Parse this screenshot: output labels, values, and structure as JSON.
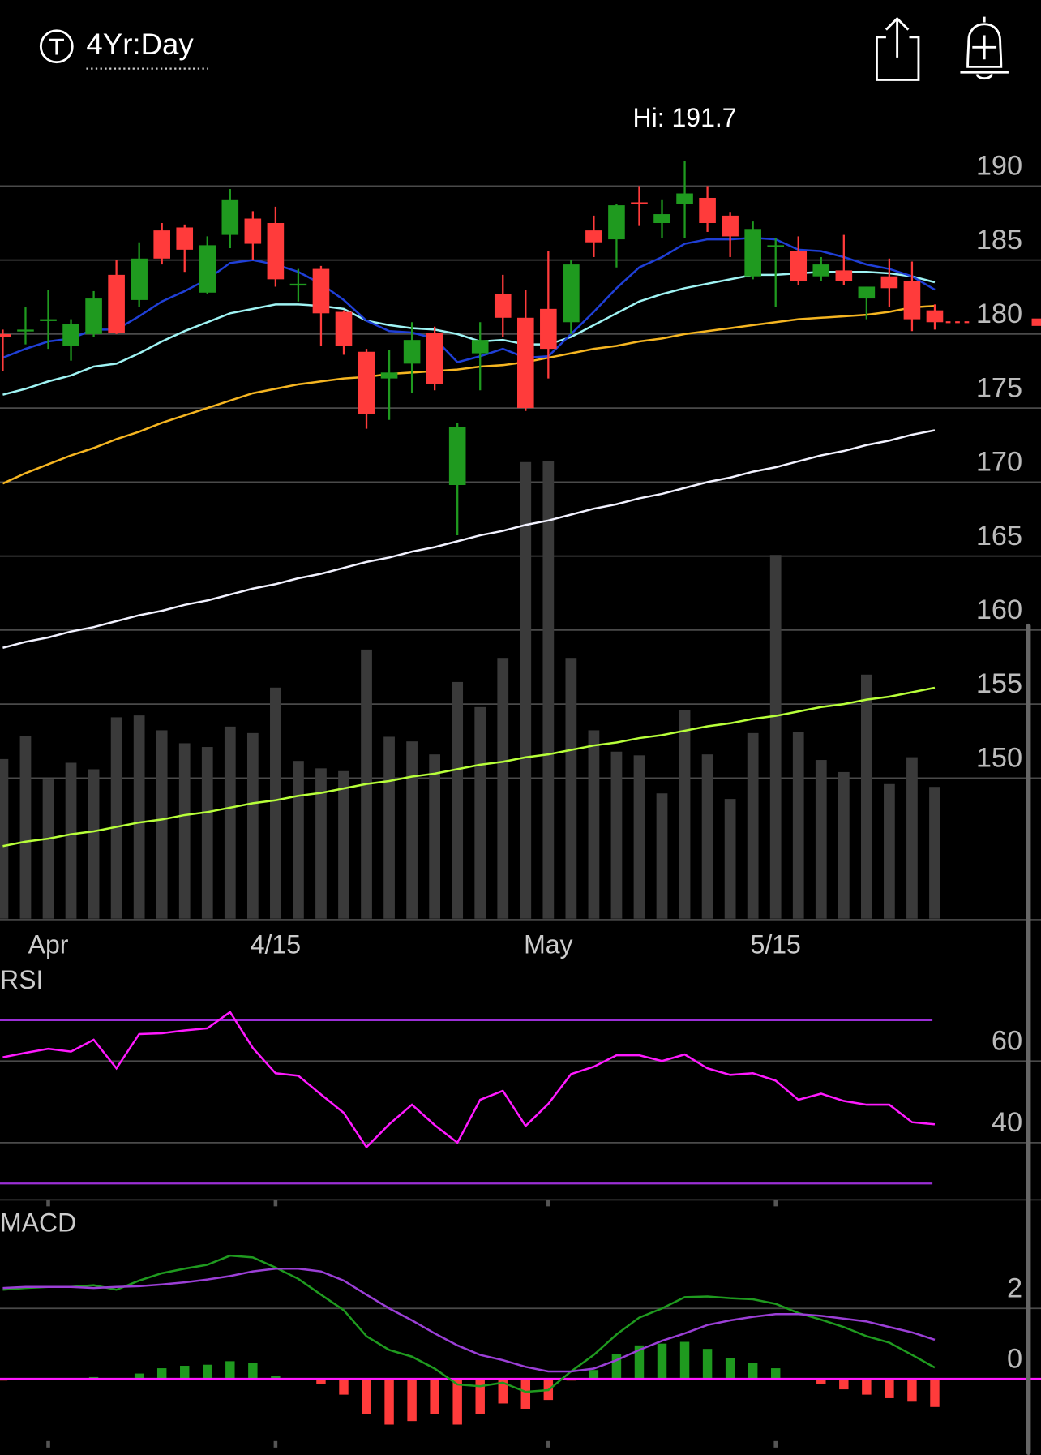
{
  "header": {
    "timeframe": "4Yr:Day"
  },
  "chart_data": [
    {
      "type": "candlestick",
      "annotation": "Hi: 191.7",
      "categories": [
        null,
        null,
        "Apr",
        null,
        null,
        null,
        null,
        null,
        null,
        null,
        null,
        null,
        "4/15",
        null,
        null,
        null,
        null,
        null,
        null,
        null,
        null,
        null,
        null,
        null,
        "May",
        null,
        null,
        null,
        null,
        null,
        null,
        null,
        null,
        null,
        "5/15",
        null,
        null,
        null,
        null,
        null,
        null,
        null
      ],
      "open": [
        180.0,
        180.2,
        180.9,
        179.2,
        180.0,
        184.0,
        182.3,
        187.0,
        187.2,
        182.8,
        186.7,
        187.8,
        187.5,
        183.3,
        184.4,
        181.5,
        178.8,
        177.0,
        178.0,
        180.1,
        169.8,
        178.7,
        182.7,
        181.1,
        181.7,
        180.8,
        187.0,
        186.4,
        188.9,
        187.5,
        188.8,
        189.2,
        188.0,
        183.9,
        185.9,
        185.6,
        183.9,
        184.3,
        182.4,
        183.9,
        183.6,
        181.6
      ],
      "high": [
        180.3,
        181.8,
        183.0,
        181.0,
        182.9,
        185.0,
        186.2,
        187.5,
        187.4,
        186.6,
        189.8,
        188.3,
        188.6,
        184.4,
        184.6,
        181.6,
        179.0,
        178.9,
        180.8,
        180.5,
        174.0,
        180.8,
        184.0,
        183.0,
        185.6,
        185.0,
        188.0,
        188.8,
        190.0,
        189.1,
        191.7,
        190.0,
        188.2,
        187.6,
        186.5,
        186.6,
        185.2,
        186.7,
        183.2,
        185.1,
        184.9,
        182.0
      ],
      "low": [
        177.5,
        179.3,
        179.0,
        178.2,
        179.8,
        180.0,
        181.8,
        184.7,
        184.2,
        182.7,
        185.8,
        185.0,
        183.2,
        182.2,
        179.2,
        178.6,
        173.6,
        174.2,
        176.0,
        176.2,
        166.4,
        176.2,
        179.8,
        174.8,
        177.0,
        180.0,
        185.2,
        184.5,
        187.3,
        186.5,
        186.5,
        186.9,
        185.2,
        183.7,
        181.8,
        183.3,
        183.6,
        183.3,
        181.0,
        181.8,
        180.2,
        180.3
      ],
      "close": [
        179.8,
        180.3,
        181.0,
        180.7,
        182.4,
        180.1,
        185.1,
        185.1,
        185.7,
        186.0,
        189.1,
        186.1,
        183.7,
        183.4,
        181.4,
        179.2,
        174.6,
        177.4,
        179.6,
        176.6,
        173.7,
        179.6,
        181.1,
        175.0,
        179.0,
        184.7,
        186.2,
        188.7,
        188.8,
        188.1,
        189.5,
        187.5,
        186.6,
        187.1,
        186.0,
        183.6,
        184.7,
        183.6,
        183.2,
        183.1,
        181.0,
        180.8
      ],
      "up_color": "#1f9a1f",
      "down_color": "#ff3b3b",
      "last_price_color": "#ff3b3b",
      "ylim": [
        140.5,
        196.3
      ],
      "yticks": [
        150,
        155,
        160,
        165,
        170,
        175,
        180,
        185,
        190
      ],
      "grid": true,
      "series": [
        {
          "color": "#b8ff3a",
          "values": [
            145.4,
            145.7,
            145.9,
            146.2,
            146.4,
            146.7,
            147.0,
            147.2,
            147.5,
            147.7,
            148.0,
            148.3,
            148.5,
            148.8,
            149.0,
            149.3,
            149.6,
            149.8,
            150.1,
            150.3,
            150.6,
            150.9,
            151.1,
            151.4,
            151.6,
            151.9,
            152.2,
            152.4,
            152.7,
            152.9,
            153.2,
            153.5,
            153.7,
            154.0,
            154.2,
            154.5,
            154.8,
            155.0,
            155.3,
            155.5,
            155.8,
            156.1
          ]
        },
        {
          "color": "#f2f2ff",
          "values": [
            158.8,
            159.2,
            159.5,
            159.9,
            160.2,
            160.6,
            161.0,
            161.3,
            161.7,
            162.0,
            162.4,
            162.8,
            163.1,
            163.5,
            163.8,
            164.2,
            164.6,
            164.9,
            165.3,
            165.6,
            166.0,
            166.4,
            166.7,
            167.1,
            167.4,
            167.8,
            168.2,
            168.5,
            168.9,
            169.2,
            169.6,
            170.0,
            170.3,
            170.7,
            171.0,
            171.4,
            171.8,
            172.1,
            172.5,
            172.8,
            173.2,
            173.5
          ]
        },
        {
          "color": "#f5b521",
          "values": [
            169.9,
            170.6,
            171.2,
            171.8,
            172.3,
            172.9,
            173.4,
            174.0,
            174.5,
            175.0,
            175.5,
            176.0,
            176.3,
            176.6,
            176.8,
            177.0,
            177.1,
            177.3,
            177.4,
            177.5,
            177.6,
            177.8,
            177.9,
            178.1,
            178.4,
            178.7,
            179.0,
            179.2,
            179.5,
            179.7,
            180.0,
            180.2,
            180.4,
            180.6,
            180.8,
            181.0,
            181.1,
            181.2,
            181.3,
            181.5,
            181.8,
            181.9
          ]
        },
        {
          "color": "#9ff3f3",
          "values": [
            175.9,
            176.3,
            176.8,
            177.2,
            177.8,
            178.0,
            178.7,
            179.5,
            180.2,
            180.8,
            181.4,
            181.7,
            182.0,
            182.0,
            181.9,
            181.7,
            180.9,
            180.6,
            180.4,
            180.3,
            180.0,
            179.5,
            179.6,
            179.3,
            179.3,
            179.8,
            180.6,
            181.4,
            182.2,
            182.7,
            183.1,
            183.4,
            183.7,
            184.0,
            184.0,
            184.1,
            184.2,
            184.2,
            184.2,
            184.1,
            183.9,
            183.5
          ]
        },
        {
          "color": "#1f3fd6",
          "values": [
            178.4,
            179.0,
            179.5,
            179.7,
            180.3,
            180.3,
            181.2,
            182.2,
            182.9,
            183.7,
            184.8,
            185.0,
            184.7,
            184.2,
            183.4,
            182.3,
            180.9,
            180.2,
            180.1,
            179.7,
            178.1,
            178.5,
            179.0,
            178.4,
            178.5,
            180.0,
            181.5,
            183.1,
            184.5,
            185.2,
            186.1,
            186.4,
            186.4,
            186.5,
            186.4,
            185.7,
            185.6,
            185.2,
            184.7,
            184.4,
            183.9,
            183.0
          ]
        }
      ],
      "volume": {
        "color": "#3a3a3a",
        "ylim": [
          0,
          890
        ],
        "values": [
          172,
          197,
          150,
          168,
          161,
          217,
          219,
          203,
          189,
          185,
          207,
          200,
          249,
          170,
          162,
          159,
          290,
          196,
          191,
          177,
          255,
          228,
          281,
          492,
          493,
          281,
          203,
          180,
          176,
          135,
          225,
          177,
          129,
          200,
          392,
          201,
          171,
          158,
          263,
          145,
          174,
          142
        ]
      }
    },
    {
      "type": "line",
      "title": "RSI",
      "ylim": [
        26,
        83.5
      ],
      "yticks": [
        40,
        60
      ],
      "grid": true,
      "levels": [
        30,
        70
      ],
      "level_color": "#9b2fd6",
      "series": [
        {
          "color": "#ff1aff",
          "values": [
            60.9,
            62.0,
            63.0,
            62.3,
            65.2,
            58.2,
            66.6,
            66.8,
            67.5,
            68.0,
            72.0,
            63.2,
            57.0,
            56.4,
            51.8,
            47.3,
            38.9,
            44.5,
            49.3,
            44.3,
            40.0,
            50.5,
            52.7,
            44.1,
            49.5,
            56.8,
            58.6,
            61.4,
            61.4,
            60.0,
            61.6,
            58.2,
            56.6,
            57.0,
            55.2,
            50.5,
            52.0,
            50.2,
            49.3,
            49.3,
            45.0,
            44.5
          ]
        }
      ]
    },
    {
      "type": "macd",
      "title": "MACD",
      "ylim": [
        -1.9,
        4.9
      ],
      "yticks": [
        0,
        2
      ],
      "grid": true,
      "zero_color": "#ff1aff",
      "series": [
        {
          "color": "#1f9a1f",
          "values": [
            2.53,
            2.58,
            2.61,
            2.61,
            2.66,
            2.53,
            2.79,
            3.0,
            3.13,
            3.24,
            3.5,
            3.45,
            3.16,
            2.84,
            2.39,
            1.95,
            1.21,
            0.82,
            0.63,
            0.29,
            -0.16,
            -0.21,
            -0.11,
            -0.37,
            -0.32,
            0.21,
            0.68,
            1.26,
            1.74,
            2.0,
            2.32,
            2.34,
            2.29,
            2.26,
            2.13,
            1.87,
            1.68,
            1.47,
            1.21,
            1.03,
            0.68,
            0.32
          ]
        },
        {
          "color": "#9b3fd6",
          "values": [
            2.58,
            2.61,
            2.61,
            2.61,
            2.58,
            2.61,
            2.63,
            2.68,
            2.74,
            2.82,
            2.92,
            3.05,
            3.13,
            3.13,
            3.05,
            2.79,
            2.39,
            2.0,
            1.66,
            1.29,
            0.95,
            0.68,
            0.53,
            0.34,
            0.21,
            0.21,
            0.29,
            0.53,
            0.82,
            1.08,
            1.29,
            1.53,
            1.66,
            1.76,
            1.84,
            1.84,
            1.79,
            1.71,
            1.63,
            1.47,
            1.32,
            1.11
          ]
        }
      ],
      "histogram": {
        "up_color": "#1f9a1f",
        "down_color": "#ff3b3b",
        "values": [
          -0.05,
          -0.03,
          0,
          0.02,
          0.05,
          -0.03,
          0.15,
          0.3,
          0.37,
          0.4,
          0.5,
          0.45,
          0.08,
          -0.02,
          -0.15,
          -0.45,
          -1.0,
          -1.3,
          -1.2,
          -1.0,
          -1.3,
          -1.0,
          -0.7,
          -0.85,
          -0.6,
          -0.05,
          0.25,
          0.7,
          0.95,
          1.0,
          1.05,
          0.85,
          0.6,
          0.45,
          0.3,
          -0.02,
          -0.15,
          -0.3,
          -0.45,
          -0.55,
          -0.65,
          -0.8
        ]
      }
    }
  ]
}
